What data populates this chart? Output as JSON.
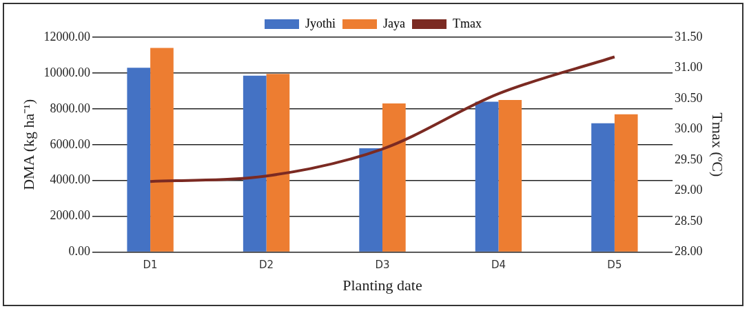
{
  "chart_data": {
    "type": "bar",
    "xlabel": "Planting date",
    "ylabel": "DMA (kg ha⁻¹)",
    "y2label": "Tmax (ºC)",
    "categories": [
      "D1",
      "D2",
      "D3",
      "D4",
      "D5"
    ],
    "series": [
      {
        "name": "Jyothi",
        "color": "#4472c4",
        "values": [
          10300,
          9850,
          5800,
          8400,
          7200
        ]
      },
      {
        "name": "Jaya",
        "color": "#ed7d31",
        "values": [
          11400,
          9950,
          8300,
          8500,
          7700
        ]
      },
      {
        "name": "Tmax",
        "type": "line",
        "axis": "y2",
        "color": "#7b2a22",
        "values": [
          29.15,
          29.24,
          29.68,
          30.58,
          31.18
        ]
      }
    ],
    "ylim": [
      0,
      12000
    ],
    "yticks": [
      {
        "value": 0,
        "label": "0.00"
      },
      {
        "value": 2000,
        "label": "2000.00"
      },
      {
        "value": 4000,
        "label": "4000.00"
      },
      {
        "value": 6000,
        "label": "6000.00"
      },
      {
        "value": 8000,
        "label": "8000.00"
      },
      {
        "value": 10000,
        "label": "10000.00"
      },
      {
        "value": 12000,
        "label": "12000.00"
      }
    ],
    "y2lim": [
      28,
      31.5
    ],
    "y2ticks": [
      {
        "value": 28,
        "label": "28.00"
      },
      {
        "value": 28.5,
        "label": "28.50"
      },
      {
        "value": 29,
        "label": "29.00"
      },
      {
        "value": 29.5,
        "label": "29.50"
      },
      {
        "value": 30,
        "label": "30.00"
      },
      {
        "value": 30.5,
        "label": "30.50"
      },
      {
        "value": 31,
        "label": "31.00"
      },
      {
        "value": 31.5,
        "label": "31.50"
      }
    ],
    "grid": "y",
    "legend": "top",
    "marker": "none"
  }
}
